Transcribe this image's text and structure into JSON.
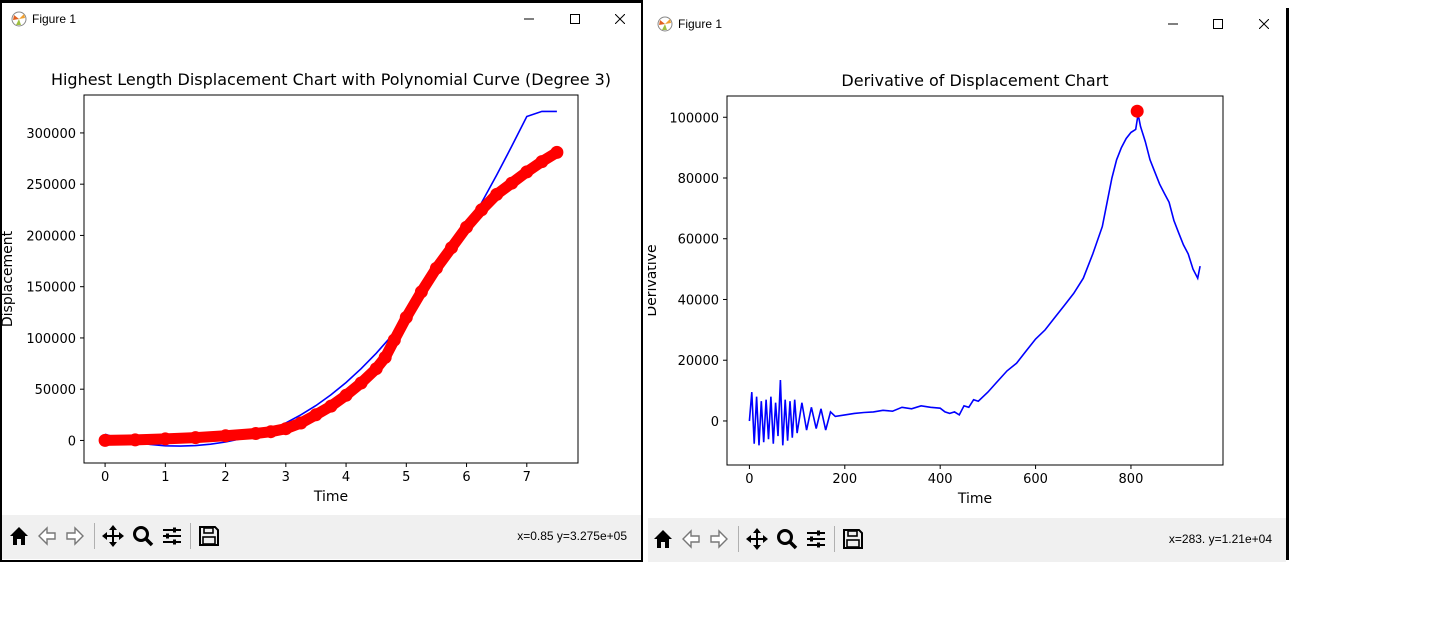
{
  "window1": {
    "title": "Figure 1",
    "status": "x=0.85 y=3.275e+05",
    "chart_data": {
      "type": "scatter",
      "title": "Highest Length Displacement Chart with Polynomial Curve (Degree 3)",
      "xlabel": "Time",
      "ylabel": "Displacement",
      "xlim": [
        -0.35,
        7.85
      ],
      "ylim": [
        -22000,
        337000
      ],
      "xticks": [
        0,
        1,
        2,
        3,
        4,
        5,
        6,
        7
      ],
      "yticks": [
        0,
        50000,
        100000,
        150000,
        200000,
        250000,
        300000
      ],
      "series": [
        {
          "kind": "line",
          "color": "#0000ff",
          "x": [
            0,
            0.25,
            0.5,
            0.75,
            1.0,
            1.25,
            1.5,
            1.75,
            2.0,
            2.25,
            2.5,
            2.75,
            3.0,
            3.25,
            3.5,
            3.75,
            4.0,
            4.25,
            4.5,
            4.75,
            5.0,
            5.25,
            5.5,
            5.75,
            6.0,
            6.25,
            6.5,
            6.75,
            7.0,
            7.25,
            7.5
          ],
          "y": [
            6000,
            1500,
            -1800,
            -4000,
            -5200,
            -5500,
            -5000,
            -3700,
            -1500,
            1500,
            5500,
            10500,
            17000,
            25000,
            34000,
            44500,
            56500,
            70000,
            85000,
            101500,
            119500,
            139000,
            160000,
            182500,
            206500,
            232000,
            259000,
            287000,
            316000,
            321000,
            321000
          ]
        },
        {
          "kind": "markers",
          "color": "#ff0000",
          "x": [
            0,
            0.5,
            1.0,
            1.5,
            2.0,
            2.5,
            2.75,
            3.0,
            3.25,
            3.5,
            3.75,
            4.0,
            4.25,
            4.5,
            4.65,
            4.8,
            5.0,
            5.25,
            5.5,
            5.75,
            6.0,
            6.25,
            6.5,
            6.75,
            7.0,
            7.25,
            7.5
          ],
          "y": [
            0,
            500,
            1500,
            2800,
            4500,
            6800,
            8500,
            11500,
            17000,
            25000,
            33500,
            44000,
            56000,
            70000,
            81000,
            98000,
            120000,
            145000,
            168000,
            188000,
            208000,
            225000,
            240000,
            251000,
            262000,
            272000,
            281000
          ]
        }
      ]
    }
  },
  "window2": {
    "title": "Figure 1",
    "status": "x=283. y=1.21e+04",
    "chart_data": {
      "type": "line",
      "title": "Derivative of Displacement Chart",
      "xlabel": "Time",
      "ylabel": "Derivative",
      "xlim": [
        -47,
        993
      ],
      "ylim": [
        -14500,
        107000
      ],
      "xticks": [
        0,
        200,
        400,
        600,
        800
      ],
      "yticks": [
        0,
        20000,
        40000,
        60000,
        80000,
        100000
      ],
      "series": [
        {
          "kind": "line",
          "color": "#0000ff",
          "x": [
            0,
            5,
            10,
            15,
            20,
            25,
            30,
            35,
            40,
            45,
            50,
            55,
            60,
            65,
            70,
            75,
            80,
            85,
            90,
            95,
            100,
            110,
            120,
            130,
            140,
            150,
            160,
            170,
            180,
            200,
            220,
            240,
            260,
            280,
            300,
            320,
            340,
            360,
            380,
            400,
            410,
            420,
            430,
            440,
            450,
            460,
            470,
            480,
            500,
            520,
            540,
            560,
            580,
            600,
            620,
            640,
            660,
            680,
            700,
            720,
            740,
            750,
            760,
            770,
            780,
            790,
            800,
            810,
            815,
            820,
            830,
            840,
            850,
            860,
            870,
            880,
            890,
            900,
            910,
            920,
            930,
            940,
            945
          ],
          "y": [
            0,
            9500,
            -7500,
            8000,
            -8000,
            6500,
            -7000,
            7000,
            -6000,
            8000,
            -7500,
            6000,
            -5000,
            13500,
            -8000,
            7000,
            -6500,
            6500,
            -5500,
            7000,
            -4000,
            6000,
            -3000,
            4500,
            -2500,
            4000,
            -3000,
            3000,
            1500,
            2000,
            2500,
            2800,
            3000,
            3500,
            3200,
            4500,
            4000,
            5000,
            4500,
            4200,
            3000,
            2500,
            3000,
            2000,
            5000,
            4500,
            7000,
            6500,
            9500,
            13000,
            16500,
            19000,
            23000,
            27000,
            30000,
            34000,
            38000,
            42000,
            47000,
            55000,
            64000,
            72000,
            80000,
            86000,
            90000,
            93000,
            95000,
            96000,
            101000,
            97000,
            92000,
            86000,
            82000,
            78000,
            75000,
            72000,
            66000,
            62000,
            58000,
            55000,
            50000,
            47000,
            51000
          ]
        },
        {
          "kind": "markers",
          "color": "#ff0000",
          "x": [
            813
          ],
          "y": [
            102000
          ]
        }
      ]
    }
  },
  "toolbar_icons": [
    "home-icon",
    "back-icon",
    "forward-icon",
    "pan-icon",
    "zoom-icon",
    "configure-icon",
    "save-icon"
  ]
}
